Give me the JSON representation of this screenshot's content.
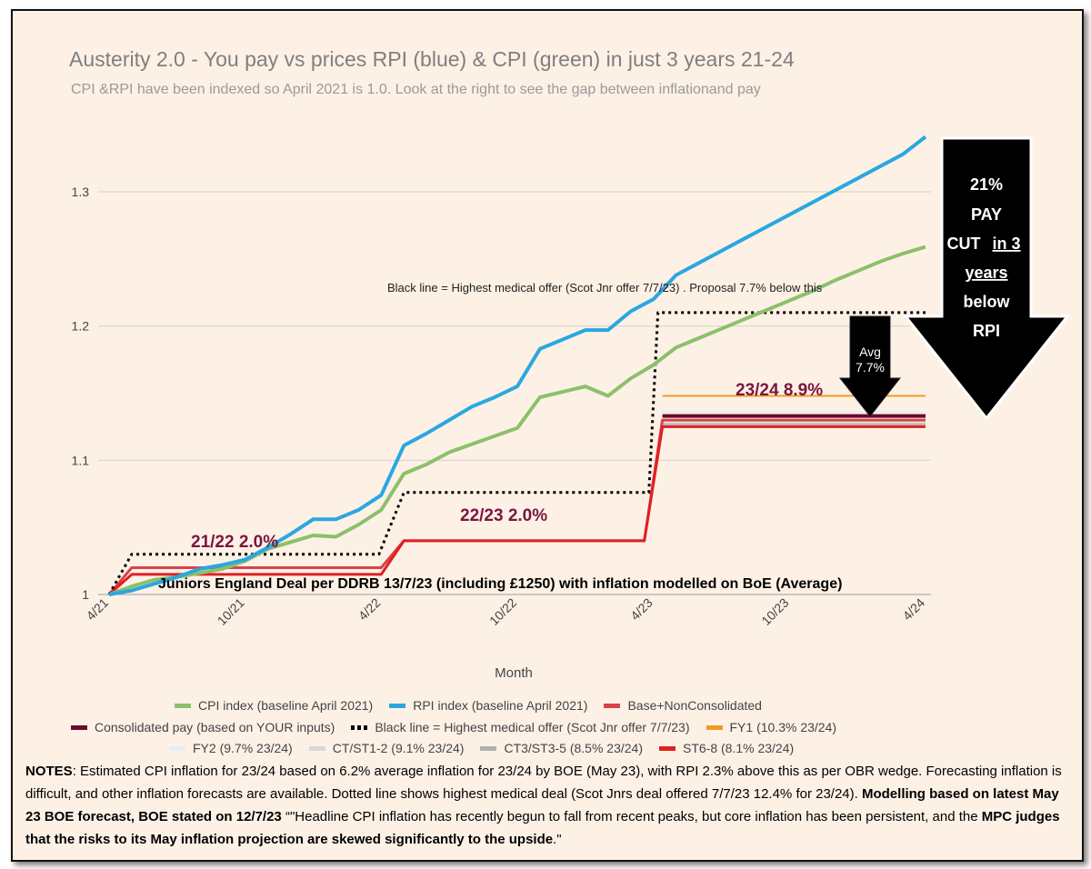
{
  "title": "Austerity 2.0 - You pay vs prices RPI (blue) & CPI (green) in just 3 years 21-24",
  "subtitle": "CPI &RPI have been indexed so April 2021 is 1.0. Look at the right to see the gap between inflationand pay",
  "chart_data": {
    "type": "line",
    "xlabel": "Month",
    "ylabel": "",
    "x_ticks": [
      "4/21",
      "10/21",
      "4/22",
      "10/22",
      "4/23",
      "10/23",
      "4/24"
    ],
    "x_range_months": [
      0,
      36
    ],
    "y_ticks": [
      "1",
      "1.1",
      "1.2",
      "1.3"
    ],
    "ylim": [
      1.0,
      1.34
    ],
    "grid": "horizontal",
    "legend_position": "bottom",
    "series": [
      {
        "name": "CPI index (baseline April 2021)",
        "color": "#8cc06a",
        "points": [
          [
            0,
            1.0
          ],
          [
            1,
            1.006
          ],
          [
            2,
            1.011
          ],
          [
            3,
            1.013
          ],
          [
            4,
            1.016
          ],
          [
            5,
            1.019
          ],
          [
            6,
            1.025
          ],
          [
            7,
            1.034
          ],
          [
            8,
            1.039
          ],
          [
            9,
            1.044
          ],
          [
            10,
            1.043
          ],
          [
            11,
            1.052
          ],
          [
            12,
            1.063
          ],
          [
            13,
            1.09
          ],
          [
            14,
            1.097
          ],
          [
            15,
            1.106
          ],
          [
            16,
            1.112
          ],
          [
            17,
            1.118
          ],
          [
            18,
            1.124
          ],
          [
            19,
            1.147
          ],
          [
            20,
            1.151
          ],
          [
            21,
            1.155
          ],
          [
            22,
            1.148
          ],
          [
            23,
            1.161
          ],
          [
            24,
            1.171
          ],
          [
            25,
            1.184
          ],
          [
            26,
            1.191
          ],
          [
            27,
            1.198
          ],
          [
            28,
            1.205
          ],
          [
            29,
            1.212
          ],
          [
            30,
            1.219
          ],
          [
            31,
            1.226
          ],
          [
            32,
            1.234
          ],
          [
            33,
            1.241
          ],
          [
            34,
            1.248
          ],
          [
            35,
            1.254
          ],
          [
            36,
            1.259
          ]
        ]
      },
      {
        "name": "RPI index (baseline April 2021)",
        "color": "#2aa7e0",
        "points": [
          [
            0,
            1.0
          ],
          [
            1,
            1.003
          ],
          [
            2,
            1.008
          ],
          [
            3,
            1.013
          ],
          [
            4,
            1.019
          ],
          [
            5,
            1.022
          ],
          [
            6,
            1.026
          ],
          [
            7,
            1.035
          ],
          [
            8,
            1.045
          ],
          [
            9,
            1.056
          ],
          [
            10,
            1.056
          ],
          [
            11,
            1.063
          ],
          [
            12,
            1.074
          ],
          [
            13,
            1.111
          ],
          [
            14,
            1.12
          ],
          [
            15,
            1.13
          ],
          [
            16,
            1.14
          ],
          [
            17,
            1.147
          ],
          [
            18,
            1.155
          ],
          [
            19,
            1.183
          ],
          [
            20,
            1.19
          ],
          [
            21,
            1.197
          ],
          [
            22,
            1.197
          ],
          [
            23,
            1.211
          ],
          [
            24,
            1.22
          ],
          [
            25,
            1.238
          ],
          [
            26,
            1.247
          ],
          [
            27,
            1.256
          ],
          [
            28,
            1.265
          ],
          [
            29,
            1.274
          ],
          [
            30,
            1.283
          ],
          [
            31,
            1.292
          ],
          [
            32,
            1.301
          ],
          [
            33,
            1.31
          ],
          [
            34,
            1.319
          ],
          [
            35,
            1.328
          ],
          [
            36,
            1.341
          ]
        ]
      },
      {
        "name": "Base+NonConsolidated",
        "color": "#d9424a",
        "points": [
          [
            0,
            1.0
          ],
          [
            1,
            1.02
          ],
          [
            12,
            1.02
          ],
          [
            13,
            1.04
          ],
          [
            23.6,
            1.04
          ],
          [
            24.4,
            1.13
          ],
          [
            36,
            1.13
          ]
        ]
      },
      {
        "name": "Consolidated pay (based on YOUR inputs)",
        "color": "#6b0a2a",
        "points": [
          [
            24.4,
            1.133
          ],
          [
            36,
            1.133
          ]
        ]
      },
      {
        "name": "Black line = Highest medical offer (Scot Jnr offer 7/7/23)",
        "color": "#000000",
        "dashed": true,
        "points": [
          [
            0,
            1.0
          ],
          [
            1,
            1.03
          ],
          [
            11.9,
            1.03
          ],
          [
            13,
            1.076
          ],
          [
            23.8,
            1.076
          ],
          [
            24.2,
            1.21
          ],
          [
            36,
            1.21
          ]
        ]
      },
      {
        "name": "FY1 (10.3% 23/24)",
        "color": "#f39a1d",
        "points": [
          [
            24.4,
            1.148
          ],
          [
            36,
            1.148
          ]
        ]
      },
      {
        "name": "FY2 (9.7% 23/24)",
        "color": "#e6eef0",
        "points": [
          [
            24.4,
            1.136
          ],
          [
            36,
            1.136
          ]
        ]
      },
      {
        "name": "CT/ST1-2 (9.1% 23/24)",
        "color": "#d8d8d8",
        "points": [
          [
            24.4,
            1.129
          ],
          [
            36,
            1.129
          ]
        ]
      },
      {
        "name": "CT3/ST3-5 (8.5% 23/24)",
        "color": "#b0b0b0",
        "points": [
          [
            24.4,
            1.127
          ],
          [
            36,
            1.127
          ]
        ]
      },
      {
        "name": "ST6-8 (8.1% 23/24)",
        "color": "#e02020",
        "points": [
          [
            0,
            1.0
          ],
          [
            1,
            1.015
          ],
          [
            12,
            1.015
          ],
          [
            13,
            1.04
          ],
          [
            23.6,
            1.04
          ],
          [
            24.4,
            1.125
          ],
          [
            36,
            1.125
          ]
        ]
      }
    ],
    "annotations": {
      "pay_2122": "21/22 2.0%",
      "pay_2223": "22/23 2.0%",
      "pay_2324": "23/24 8.9%",
      "black_line_note": "Black line = Highest medical offer (Scot Jnr offer 7/7/23) . Proposal 7.7% below this",
      "deal_note": "Juniors England Deal per DDRB 13/7/23  (including £1250) with inflation modelled on BoE (Average)",
      "avg_arrow": [
        "Avg",
        "7.7%"
      ],
      "big_arrow": [
        "21%",
        "PAY",
        "CUT",
        "in 3",
        "years",
        "below",
        "RPI"
      ]
    }
  },
  "legend": {
    "row1": [
      "CPI index (baseline April 2021)",
      "RPI index (baseline April 2021)",
      "Base+NonConsolidated"
    ],
    "row2": [
      "Consolidated pay (based on YOUR inputs)",
      "Black line = Highest medical offer (Scot Jnr offer 7/7/23)",
      "FY1 (10.3% 23/24)"
    ],
    "row3": [
      "FY2 (9.7% 23/24)",
      "CT/ST1-2 (9.1% 23/24)",
      "CT3/ST3-5 (8.5% 23/24)",
      "ST6-8 (8.1% 23/24)"
    ]
  },
  "colors": {
    "cpi": "#8cc06a",
    "rpi": "#2aa7e0",
    "base": "#d9424a",
    "consolidated": "#6b0a2a",
    "fy1": "#f39a1d",
    "fy2": "#e6eef0",
    "ct12": "#d8d8d8",
    "ct35": "#b0b0b0",
    "st68": "#e02020",
    "annotation": "#7a1640",
    "background": "#fdf1e6"
  },
  "notes": {
    "n1_bold": "NOTES",
    "n1": ": Estimated CPI inflation for 23/24 based on 6.2% average inflation for 23/24 by BOE (May 23), with RPI 2.3% above this as per OBR wedge. Forecasting inflation is difficult, and other inflation forecasts are available. Dotted line shows highest medical deal (Scot Jnrs deal offered 7/7/23 12.4% for 23/24). ",
    "n2_bold": "Modelling based on latest  May 23 BOE forecast, BOE stated on 12/7/23",
    "n3": " “\"Headline CPI inflation has recently begun to fall from recent peaks, but core inflation has been persistent, and the ",
    "n4_bold": "MPC judges that the risks to its May inflation projection are skewed significantly to the upside",
    "n5": ".\""
  }
}
